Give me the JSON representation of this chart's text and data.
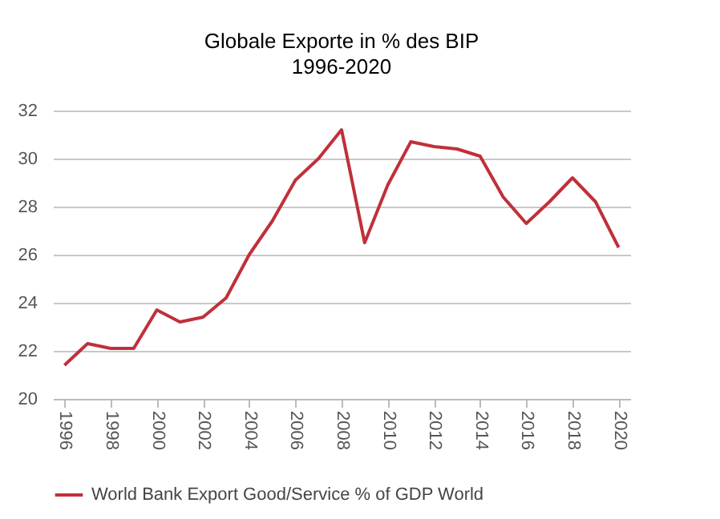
{
  "chart_data": {
    "type": "line",
    "title": "Globale Exporte in % des BIP",
    "subtitle": "1996-2020",
    "x": [
      1996,
      1997,
      1998,
      1999,
      2000,
      2001,
      2002,
      2003,
      2004,
      2005,
      2006,
      2007,
      2008,
      2009,
      2010,
      2011,
      2012,
      2013,
      2014,
      2015,
      2016,
      2017,
      2018,
      2019,
      2020
    ],
    "series": [
      {
        "name": "World Bank Export Good/Service % of GDP World",
        "color": "#c0303a",
        "values": [
          21.4,
          22.3,
          22.1,
          22.1,
          23.7,
          23.2,
          23.4,
          24.2,
          26.0,
          27.4,
          29.1,
          30.0,
          31.2,
          26.5,
          28.9,
          30.7,
          30.5,
          30.4,
          30.1,
          28.4,
          27.3,
          28.2,
          29.2,
          28.2,
          26.3
        ]
      }
    ],
    "xlim": [
      1995.5,
      2020.5
    ],
    "xticks": [
      1996,
      1998,
      2000,
      2002,
      2004,
      2006,
      2008,
      2010,
      2012,
      2014,
      2016,
      2018,
      2020
    ],
    "ylim": [
      20,
      32
    ],
    "yticks": [
      20,
      22,
      24,
      26,
      28,
      30,
      32
    ],
    "grid": "y",
    "legend": "bottom",
    "marker": "none",
    "line_style": "solid"
  }
}
